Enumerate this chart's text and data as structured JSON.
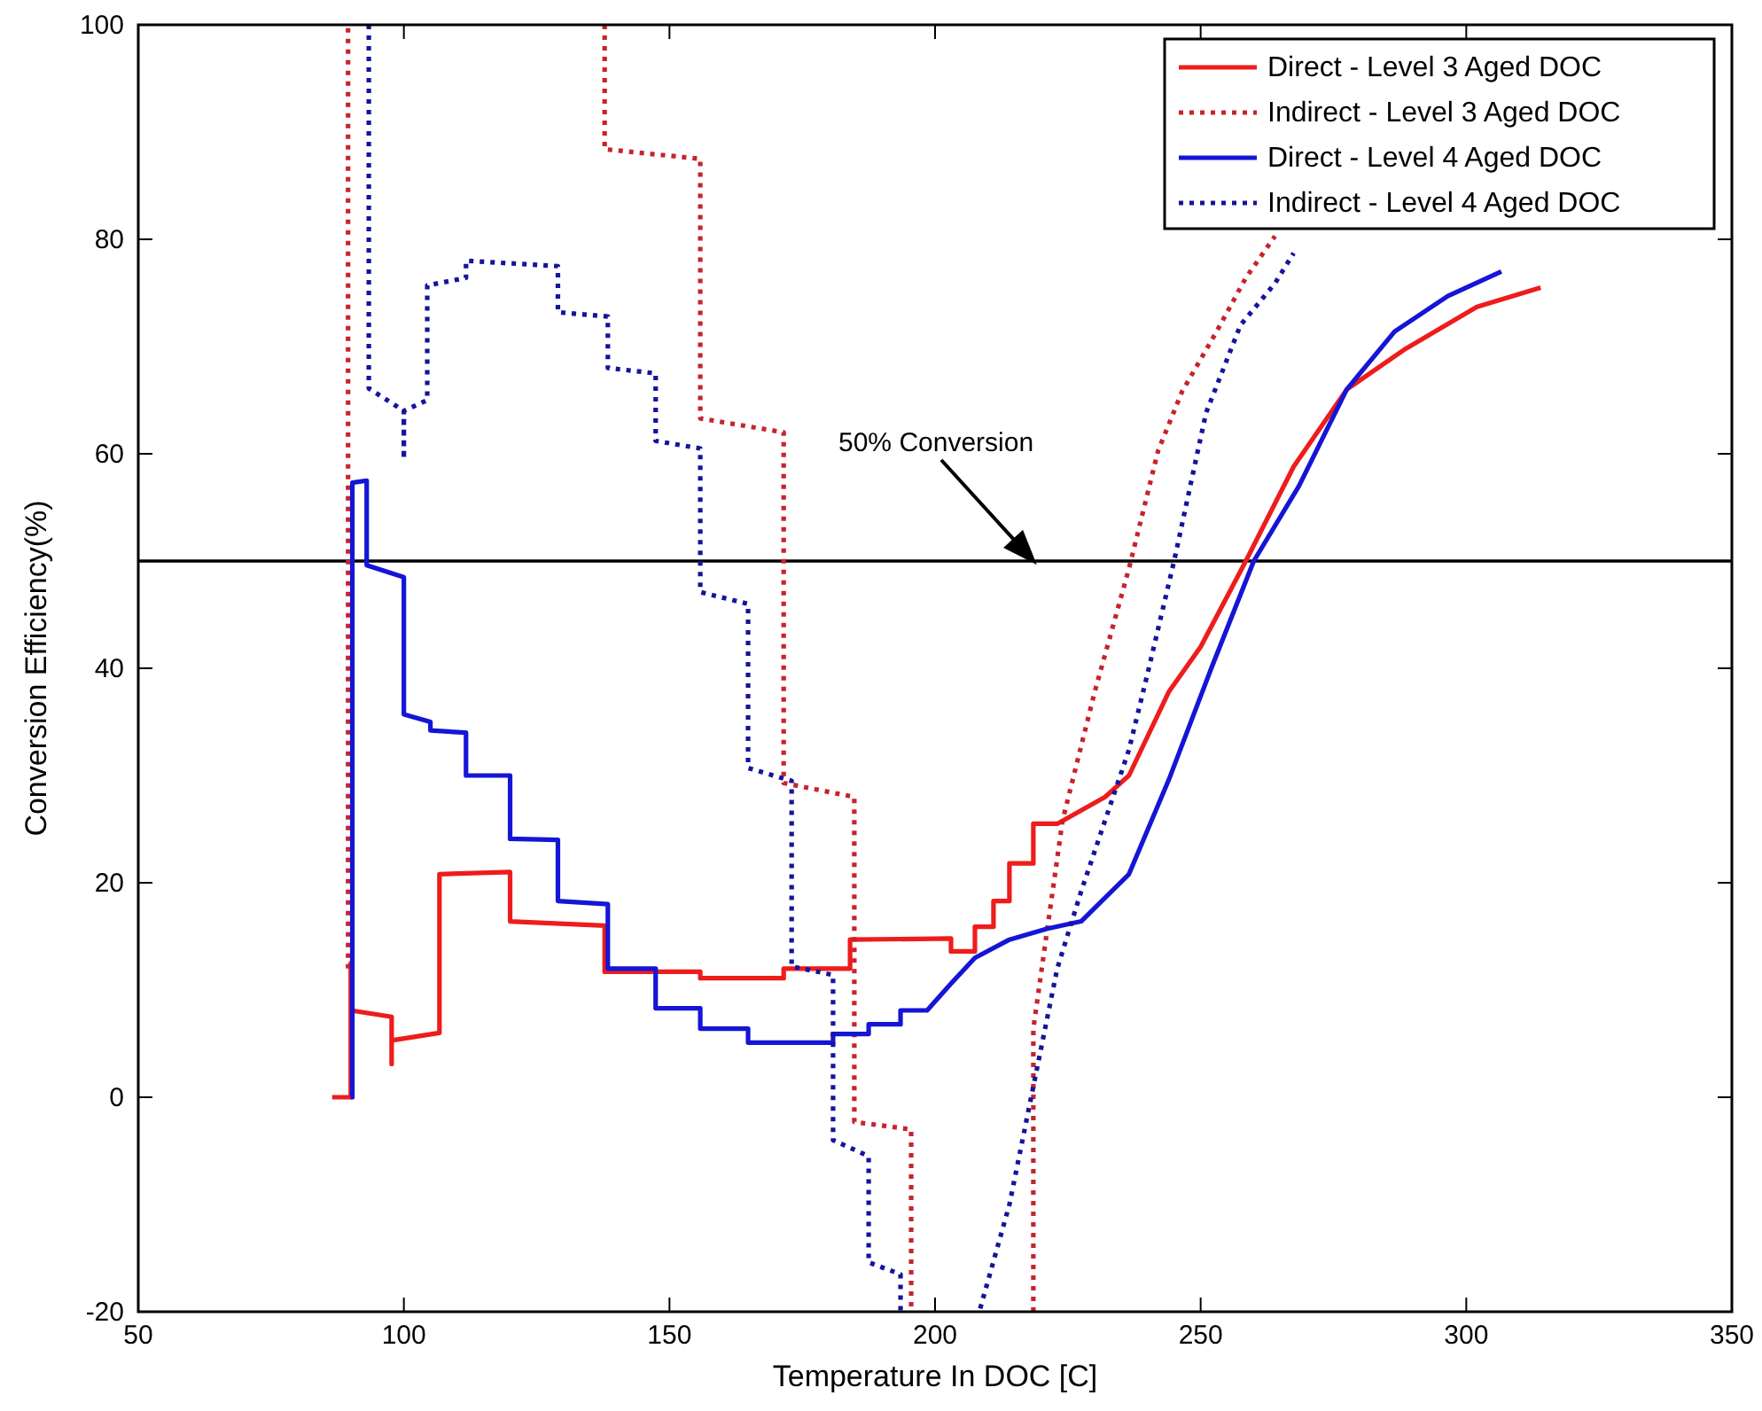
{
  "chart_data": {
    "type": "line",
    "xlabel": "Temperature In DOC [C]",
    "ylabel": "Conversion Efficiency(%)",
    "xlim": [
      50,
      350
    ],
    "ylim": [
      -20,
      100
    ],
    "xticks": [
      50,
      100,
      150,
      200,
      250,
      300,
      350
    ],
    "yticks": [
      -20,
      0,
      20,
      40,
      60,
      80,
      100
    ],
    "grid": false,
    "legend": "top right",
    "marker": "none",
    "ref_lines": [
      {
        "axis": "y",
        "value": 50,
        "color": "#000000"
      }
    ],
    "annotations": [
      "50% Conversion"
    ],
    "series": [
      {
        "name": "Direct - Level 3 Aged DOC",
        "color": "#ee1c1c",
        "line_style": "solid",
        "x": [
          86.5,
          90,
          90,
          90,
          97.7,
          97.7,
          97.7,
          106.7,
          106.7,
          120,
          120,
          137.8,
          137.8,
          155.8,
          155.8,
          171.5,
          171.5,
          184,
          184,
          203,
          203,
          207.5,
          207.5,
          211,
          211,
          214,
          214,
          218.5,
          218.5,
          223,
          232,
          236.5,
          244,
          250,
          258.5,
          267.5,
          277.5,
          288.6,
          302,
          314
        ],
        "values": [
          0,
          0,
          12.5,
          8.1,
          7.5,
          3.1,
          5.3,
          6,
          20.8,
          21,
          16.4,
          16,
          11.7,
          11.7,
          11.1,
          11.1,
          12,
          12,
          14.7,
          14.8,
          13.6,
          13.6,
          15.9,
          15.9,
          18.3,
          18.3,
          21.8,
          21.8,
          25.5,
          25.5,
          28,
          30,
          37.8,
          42,
          50,
          58.8,
          66,
          69.8,
          73.7,
          75.5
        ]
      },
      {
        "name": "Indirect - Level 3 Aged DOC",
        "color": "#c8232c",
        "line_style": "dotted",
        "x": [
          89.5,
          89.5,
          null,
          137.8,
          137.8,
          155.8,
          155.8,
          171.5,
          171.5,
          184.8,
          184.8,
          195.5,
          195.5,
          null,
          218.5,
          218.5,
          224,
          230,
          236.5,
          242,
          246.5,
          253,
          258.5,
          264
        ],
        "values": [
          12,
          100,
          null,
          100,
          88.4,
          87.5,
          63.3,
          62,
          29.3,
          28,
          -2.3,
          -3,
          -20,
          null,
          -20,
          6.4,
          25.8,
          37.7,
          49.3,
          60.3,
          65.8,
          71.4,
          76.4,
          80.3
        ]
      },
      {
        "name": "Direct - Level 4 Aged DOC",
        "color": "#1515d6",
        "line_style": "solid",
        "x": [
          90,
          90.3,
          90.3,
          93,
          93,
          100,
          100,
          105,
          105,
          111.7,
          111.7,
          120,
          120,
          129,
          129,
          138.4,
          138.4,
          147.4,
          147.4,
          155.8,
          155.8,
          164.8,
          164.8,
          180.8,
          180.8,
          187.5,
          187.5,
          193.5,
          193.5,
          198.5,
          203,
          207.5,
          214,
          221,
          227.5,
          236.5,
          244,
          252,
          260,
          268.5,
          277.5,
          286.5,
          296.5,
          306.6
        ],
        "values": [
          0,
          0,
          57.3,
          57.5,
          49.6,
          48.5,
          35.7,
          35,
          34.2,
          34,
          30,
          30,
          24.1,
          24,
          18.3,
          18,
          12,
          12,
          8.3,
          8.3,
          6.4,
          6.4,
          5.1,
          5.1,
          5.9,
          5.9,
          6.8,
          6.8,
          8.1,
          8.1,
          10.6,
          13,
          14.7,
          15.7,
          16.4,
          20.8,
          29.6,
          40,
          50,
          57,
          66,
          71.4,
          74.7,
          77
        ]
      },
      {
        "name": "Indirect - Level 4 Aged DOC",
        "color": "#14149c",
        "line_style": "dotted",
        "x": [
          93.4,
          93.4,
          100,
          100,
          100,
          104.4,
          104.4,
          111.7,
          111.7,
          129,
          129,
          138.4,
          138.4,
          147.4,
          147.4,
          155.8,
          155.8,
          164.8,
          164.8,
          173,
          173,
          180.8,
          180.8,
          187.5,
          187.5,
          193.5,
          193.5,
          null,
          208.5,
          214,
          218.5,
          223,
          227.5,
          232,
          236.5,
          240,
          245,
          251,
          257.5,
          264,
          267.5
        ],
        "values": [
          100,
          66.1,
          64,
          59.5,
          64,
          65,
          75.7,
          76.4,
          78,
          77.5,
          73.2,
          72.8,
          68,
          67.5,
          61.2,
          60.5,
          47.1,
          46,
          30.7,
          29.5,
          12.2,
          11.4,
          -4,
          -5.5,
          -15.4,
          -16.5,
          -20,
          null,
          -19.7,
          -10,
          1,
          12,
          19.2,
          25.8,
          32.4,
          39.5,
          50,
          63.8,
          72,
          75.9,
          78.7
        ]
      }
    ]
  }
}
